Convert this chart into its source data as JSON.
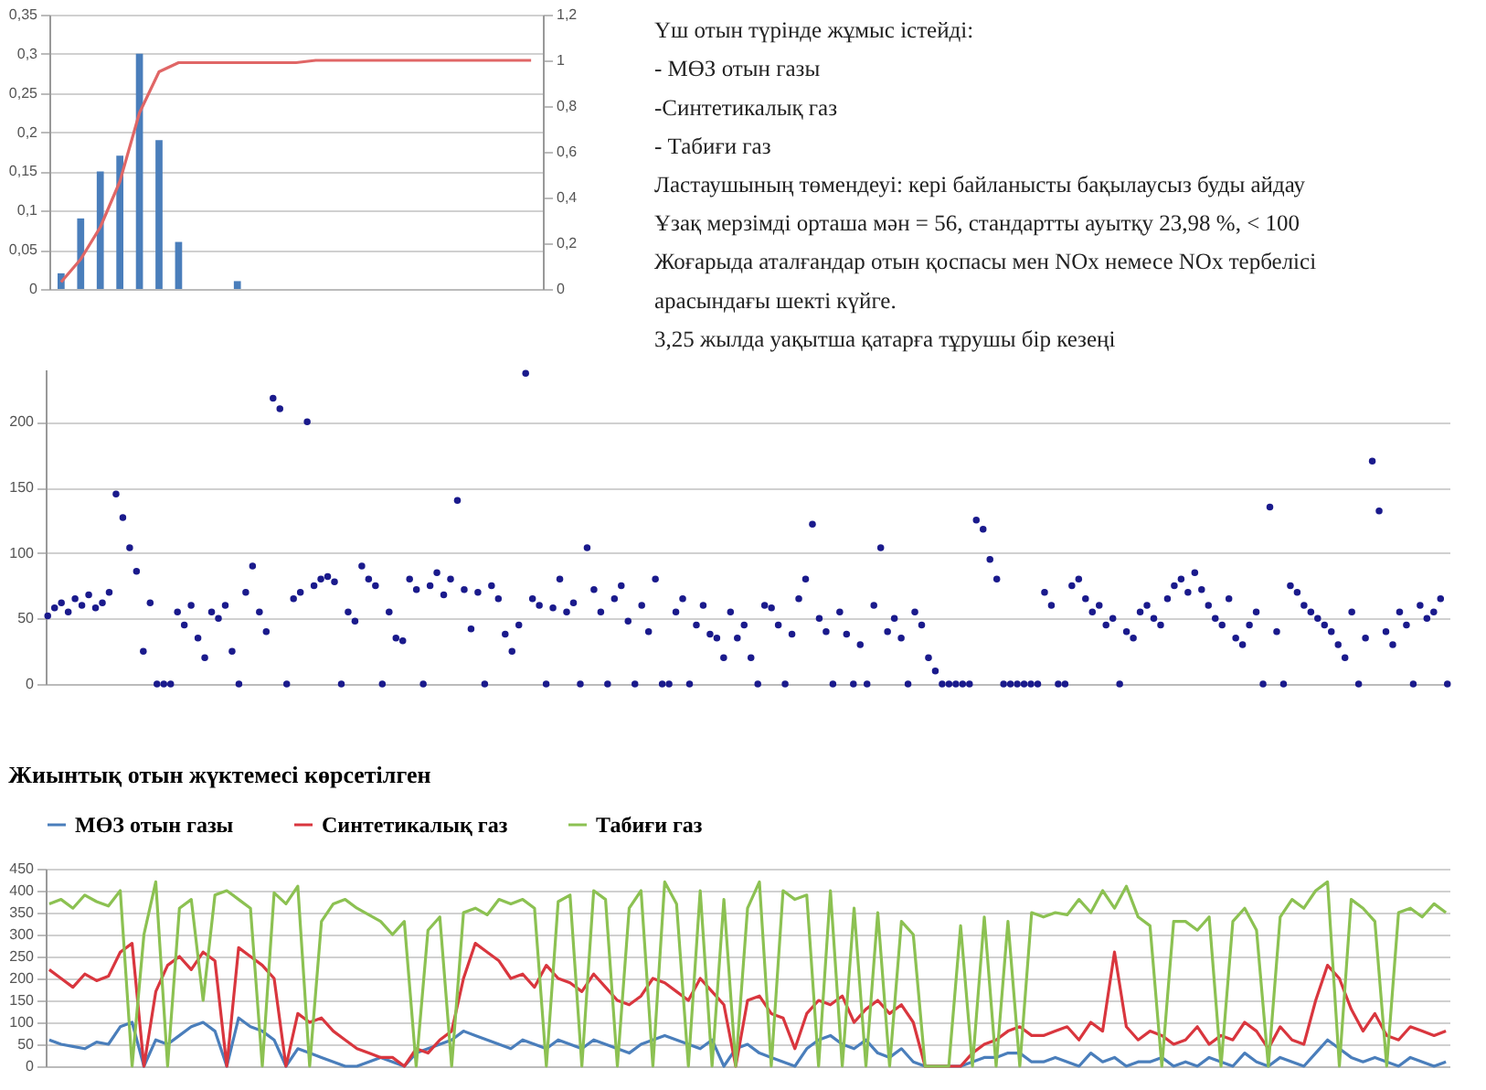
{
  "chart_data": [
    {
      "type": "bar",
      "categories": [
        null,
        null,
        null,
        null,
        null,
        null,
        null,
        null,
        null,
        null,
        null,
        null,
        null,
        null,
        null,
        null,
        null,
        null,
        null,
        null,
        null,
        null,
        null,
        null,
        null
      ],
      "series": [
        {
          "type": "bar",
          "color": "#4a7ebb",
          "values": [
            0.02,
            0.09,
            0.15,
            0.17,
            0.3,
            0.19,
            0.06,
            0,
            0,
            0.01,
            0,
            0,
            0,
            0,
            0,
            0,
            0,
            0,
            0,
            0,
            0,
            0,
            0,
            0,
            0
          ]
        },
        {
          "type": "line",
          "axis": "y2",
          "color": "#e06666",
          "values": [
            0.03,
            0.13,
            0.27,
            0.47,
            0.77,
            0.95,
            0.99,
            0.99,
            0.99,
            0.99,
            0.99,
            0.99,
            0.99,
            1,
            1,
            1,
            1,
            1,
            1,
            1,
            1,
            1,
            1,
            1,
            1
          ]
        }
      ],
      "ylim": [
        0,
        0.35
      ],
      "yticks": [
        0,
        {
          "value": 0.05,
          "label": "0,05"
        },
        {
          "value": 0.1,
          "label": "0,1"
        },
        {
          "value": 0.15,
          "label": "0,15"
        },
        {
          "value": 0.2,
          "label": "0,2"
        },
        {
          "value": 0.25,
          "label": "0,25"
        },
        {
          "value": 0.3,
          "label": "0,3"
        },
        {
          "value": 0.35,
          "label": "0,35"
        }
      ],
      "y2lim": [
        0,
        1.2
      ],
      "y2ticks": [
        0,
        {
          "value": 0.2,
          "label": "0,2"
        },
        {
          "value": 0.4,
          "label": "0,4"
        },
        {
          "value": 0.6,
          "label": "0,6"
        },
        {
          "value": 0.8,
          "label": "0,8"
        },
        1,
        {
          "value": 1.2,
          "label": "1,2"
        }
      ],
      "grid": "y"
    },
    {
      "type": "other",
      "annotations": [
        "Үш отын түрінде жұмыс істейді:",
        "- МӨЗ отын газы",
        "-Синтетикалық газ",
        "- Табиғи газ",
        "Ластаушының төмендеуі: кері байланысты бақылаусыз буды айдау",
        "Ұзақ мерзімді орташа мән = 56, стандартты ауытқу 23,98 %, < 100",
        "Жоғарыда аталғандар отын қоспасы мен NOx немесе NOx тербелісі",
        "арасындағы шекті күйге.",
        "3,25 жылда уақытша қатарға тұрушы бір кезеңі"
      ]
    },
    {
      "type": "scatter",
      "color": "#1a1a8c",
      "marker": "circle",
      "ylim": [
        0,
        240
      ],
      "yticks": [
        0,
        50,
        100,
        150,
        200
      ],
      "grid": "y",
      "categories": [
        null,
        null,
        null,
        null,
        null,
        null,
        null,
        null,
        null,
        null,
        null,
        null,
        null,
        null,
        null,
        null,
        null,
        null,
        null,
        null,
        null,
        null,
        null,
        null,
        null,
        null,
        null,
        null,
        null,
        null,
        null,
        null,
        null,
        null,
        null,
        null,
        null,
        null,
        null,
        null,
        null,
        null,
        null,
        null,
        null,
        null,
        null,
        null,
        null,
        null,
        null,
        null,
        null,
        null,
        null,
        null,
        null,
        null,
        null,
        null,
        null,
        null,
        null,
        null,
        null,
        null,
        null,
        null,
        null,
        null,
        null,
        null,
        null,
        null,
        null,
        null,
        null,
        null,
        null,
        null,
        null,
        null,
        null,
        null,
        null,
        null,
        null,
        null,
        null,
        null,
        null,
        null,
        null,
        null,
        null,
        null,
        null,
        null,
        null,
        null,
        null,
        null,
        null,
        null,
        null,
        null,
        null,
        null,
        null,
        null,
        null,
        null,
        null,
        null,
        null,
        null,
        null,
        null,
        null,
        null,
        null,
        null,
        null,
        null,
        null,
        null,
        null,
        null,
        null,
        null,
        null,
        null,
        null,
        null,
        null,
        null,
        null,
        null,
        null,
        null,
        null,
        null,
        null,
        null,
        null,
        null,
        null,
        null,
        null,
        null,
        null,
        null,
        null,
        null,
        null,
        null,
        null,
        null,
        null,
        null,
        null,
        null,
        null,
        null,
        null,
        null,
        null,
        null,
        null,
        null,
        null,
        null,
        null,
        null,
        null,
        null,
        null,
        null,
        null,
        null,
        null,
        null,
        null,
        null,
        null,
        null,
        null,
        null,
        null,
        null,
        null,
        null,
        null,
        null,
        null,
        null,
        null,
        null,
        null,
        null,
        null,
        null,
        null,
        null,
        null,
        null
      ],
      "values": [
        52,
        58,
        62,
        55,
        65,
        60,
        68,
        58,
        62,
        70,
        145,
        127,
        104,
        86,
        25,
        62,
        0,
        0,
        0,
        55,
        45,
        60,
        35,
        20,
        55,
        50,
        60,
        25,
        0,
        70,
        90,
        55,
        40,
        218,
        210,
        0,
        65,
        70,
        200,
        75,
        80,
        82,
        78,
        0,
        55,
        48,
        90,
        80,
        75,
        0,
        55,
        35,
        33,
        80,
        72,
        0,
        75,
        85,
        68,
        80,
        140,
        72,
        42,
        70,
        0,
        75,
        65,
        38,
        25,
        45,
        237,
        65,
        60,
        0,
        58,
        80,
        55,
        62,
        0,
        104,
        72,
        55,
        0,
        65,
        75,
        48,
        0,
        60,
        40,
        80,
        0,
        0,
        55,
        65,
        0,
        45,
        60,
        38,
        35,
        20,
        55,
        35,
        45,
        20,
        0,
        60,
        58,
        45,
        0,
        38,
        65,
        80,
        122,
        50,
        40,
        0,
        55,
        38,
        0,
        30,
        0,
        60,
        104,
        40,
        50,
        35,
        0,
        55,
        45,
        20,
        10,
        0,
        0,
        0,
        0,
        0,
        125,
        118,
        95,
        80,
        0,
        0,
        0,
        0,
        0,
        0,
        70,
        60,
        0,
        0,
        75,
        80,
        65,
        55,
        60,
        45,
        50,
        0,
        40,
        35,
        55,
        60,
        50,
        45,
        65,
        75,
        80,
        70,
        85,
        72,
        60,
        50,
        45,
        65,
        35,
        30,
        45,
        55,
        0,
        135,
        40,
        0,
        75,
        70,
        60,
        55,
        50,
        45,
        40,
        30,
        20,
        55,
        0,
        35,
        170,
        132,
        40,
        30,
        55,
        45,
        0,
        60,
        50,
        55,
        65,
        0
      ]
    },
    {
      "type": "line",
      "title": "Жиынтық отын жүктемесі көрсетілген",
      "legend": "top",
      "grid": "y",
      "ylim": [
        0,
        450
      ],
      "yticks": [
        0,
        50,
        100,
        150,
        200,
        250,
        300,
        350,
        400,
        450
      ],
      "categories": [
        null,
        null,
        null,
        null,
        null,
        null,
        null,
        null,
        null,
        null,
        null,
        null,
        null,
        null,
        null,
        null,
        null,
        null,
        null,
        null,
        null,
        null,
        null,
        null,
        null,
        null,
        null,
        null,
        null,
        null,
        null,
        null,
        null,
        null,
        null,
        null,
        null,
        null,
        null,
        null,
        null,
        null,
        null,
        null,
        null,
        null,
        null,
        null,
        null,
        null,
        null,
        null,
        null,
        null,
        null,
        null,
        null,
        null,
        null,
        null,
        null,
        null,
        null,
        null,
        null,
        null,
        null,
        null,
        null,
        null,
        null,
        null,
        null,
        null,
        null,
        null,
        null,
        null,
        null,
        null,
        null,
        null,
        null,
        null,
        null,
        null,
        null,
        null,
        null,
        null,
        null,
        null,
        null,
        null,
        null,
        null,
        null,
        null,
        null,
        null,
        null,
        null,
        null,
        null,
        null,
        null,
        null,
        null,
        null,
        null,
        null,
        null,
        null,
        null,
        null,
        null,
        null,
        null,
        null
      ],
      "series": [
        {
          "name": "МӨЗ отын газы",
          "color": "#4a7ebb",
          "values": [
            60,
            50,
            45,
            40,
            55,
            50,
            90,
            100,
            0,
            60,
            50,
            70,
            90,
            100,
            80,
            0,
            110,
            90,
            80,
            60,
            0,
            40,
            30,
            20,
            10,
            0,
            0,
            10,
            20,
            10,
            0,
            30,
            40,
            50,
            60,
            80,
            70,
            60,
            50,
            40,
            60,
            50,
            40,
            60,
            50,
            40,
            60,
            50,
            40,
            30,
            50,
            60,
            70,
            60,
            50,
            40,
            60,
            0,
            40,
            50,
            30,
            20,
            10,
            0,
            40,
            60,
            70,
            50,
            40,
            60,
            30,
            20,
            40,
            10,
            0,
            0,
            0,
            0,
            10,
            20,
            20,
            30,
            30,
            10,
            10,
            20,
            10,
            0,
            30,
            10,
            20,
            0,
            10,
            10,
            20,
            0,
            10,
            0,
            20,
            10,
            0,
            30,
            10,
            0,
            20,
            10,
            0,
            30,
            60,
            40,
            20,
            10,
            20,
            10,
            0,
            20,
            10,
            0,
            10
          ]
        },
        {
          "name": "Синтетикалық газ",
          "color": "#d9363e",
          "values": [
            220,
            200,
            180,
            210,
            195,
            205,
            260,
            280,
            0,
            170,
            230,
            250,
            220,
            260,
            240,
            0,
            270,
            250,
            230,
            200,
            0,
            120,
            100,
            110,
            80,
            60,
            40,
            30,
            20,
            20,
            0,
            40,
            30,
            60,
            80,
            200,
            280,
            260,
            240,
            200,
            210,
            180,
            230,
            200,
            190,
            170,
            210,
            180,
            150,
            140,
            160,
            200,
            190,
            170,
            150,
            200,
            170,
            140,
            0,
            150,
            160,
            120,
            110,
            40,
            120,
            150,
            140,
            160,
            100,
            130,
            150,
            120,
            140,
            100,
            0,
            0,
            0,
            0,
            30,
            50,
            60,
            80,
            90,
            70,
            70,
            80,
            90,
            60,
            100,
            80,
            260,
            90,
            60,
            80,
            70,
            50,
            60,
            90,
            50,
            70,
            60,
            100,
            80,
            40,
            90,
            60,
            50,
            150,
            230,
            200,
            130,
            80,
            120,
            70,
            60,
            90,
            80,
            70,
            80
          ]
        },
        {
          "name": "Табиғи газ",
          "color": "#8cc152",
          "values": [
            370,
            380,
            360,
            390,
            375,
            365,
            400,
            0,
            300,
            420,
            0,
            360,
            380,
            150,
            390,
            400,
            380,
            360,
            0,
            395,
            370,
            410,
            0,
            330,
            370,
            380,
            360,
            345,
            330,
            300,
            330,
            0,
            310,
            340,
            0,
            350,
            360,
            345,
            380,
            370,
            380,
            360,
            0,
            375,
            390,
            0,
            400,
            380,
            0,
            360,
            400,
            0,
            420,
            370,
            0,
            400,
            0,
            380,
            0,
            360,
            420,
            0,
            400,
            380,
            390,
            0,
            400,
            0,
            360,
            0,
            350,
            0,
            330,
            300,
            0,
            0,
            0,
            320,
            0,
            340,
            0,
            330,
            0,
            350,
            340,
            350,
            345,
            380,
            350,
            400,
            360,
            410,
            340,
            320,
            0,
            330,
            330,
            310,
            340,
            0,
            330,
            360,
            310,
            0,
            340,
            380,
            360,
            400,
            420,
            0,
            380,
            360,
            330,
            0,
            350,
            360,
            340,
            370,
            350
          ]
        }
      ]
    }
  ]
}
